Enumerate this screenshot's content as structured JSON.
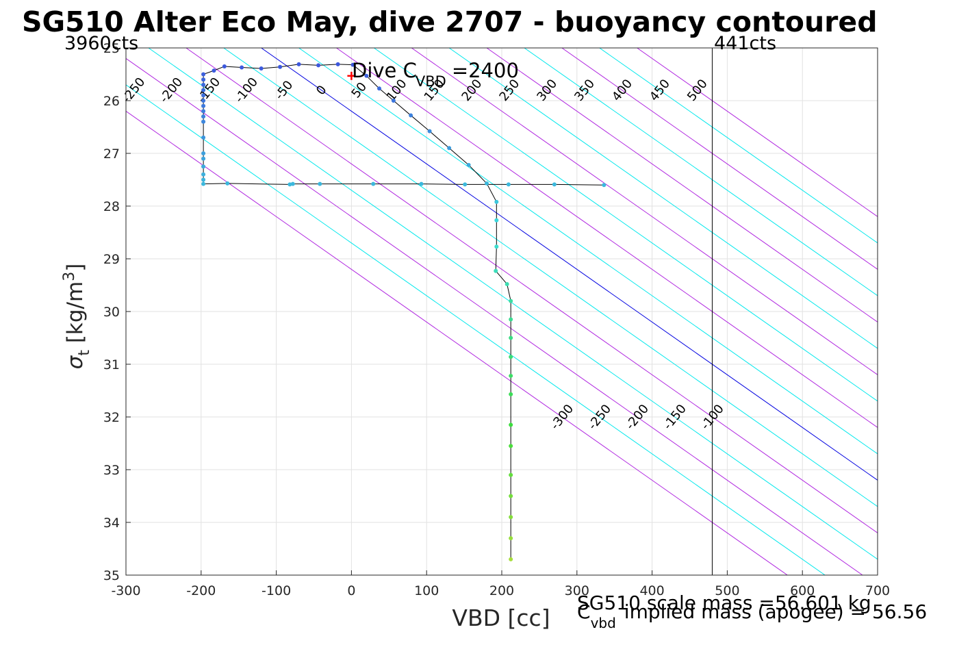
{
  "chart_data": {
    "type": "line",
    "title": "SG510 Alter Eco May, dive 2707 - buoyancy contoured",
    "xlabel": "VBD [cc]",
    "ylabel": "σt [kg/m3]",
    "xlim": [
      -300,
      700
    ],
    "ylim": [
      25,
      35
    ],
    "y_reversed": true,
    "grid": true,
    "x_ticks": [
      -300,
      -200,
      -100,
      0,
      100,
      200,
      300,
      400,
      500,
      600,
      700
    ],
    "y_ticks": [
      25,
      26,
      27,
      28,
      29,
      30,
      31,
      32,
      33,
      34,
      35
    ],
    "x_tick_labels": [
      "-300",
      "-200",
      "-100",
      "0",
      "100",
      "200",
      "300",
      "400",
      "500",
      "600",
      "700"
    ],
    "y_tick_labels": [
      "25",
      "26",
      "27",
      "28",
      "29",
      "30",
      "31",
      "32",
      "33",
      "34",
      "35"
    ],
    "annotations": {
      "counts_left": "3960cts",
      "counts_right": "441cts",
      "dive_c_prefix": "Dive C",
      "dive_c_sub": "VBD",
      "dive_c_value": "=2400",
      "scale_mass": "SG510 scale mass =56.601 kg",
      "implied_c": "C",
      "implied_sub": "vbd",
      "implied_mass": "implied mass (apogee) = 56.56"
    },
    "vertical_line_x": 480,
    "dive_c_marker": {
      "x": 0,
      "y": 25.53
    },
    "contours": {
      "slope_cc_per_kg": 100,
      "anchor_x_at_26_05": -15,
      "levels": [
        -300,
        -250,
        -200,
        -150,
        -100,
        -50,
        0,
        50,
        100,
        150,
        200,
        250,
        300,
        350,
        400,
        450,
        500
      ],
      "labels": [
        "-300",
        "-250",
        "-200",
        "-150",
        "-100",
        "-50",
        "0",
        "50",
        "100",
        "150",
        "200",
        "250",
        "300",
        "350",
        "400",
        "450",
        "500"
      ],
      "colors": {
        "zero": "#0000e0",
        "multiple_100": "#b026e0",
        "default": "#00e8ec"
      }
    },
    "series": [
      {
        "color": "#000000",
        "points": [
          {
            "x": 336,
            "y": 27.6
          },
          {
            "x": 270,
            "y": 27.59
          },
          {
            "x": 209,
            "y": 27.59
          },
          {
            "x": 151,
            "y": 27.59
          },
          {
            "x": 93,
            "y": 27.58
          },
          {
            "x": 29,
            "y": 27.58
          },
          {
            "x": -42,
            "y": 27.58
          },
          {
            "x": -78,
            "y": 27.58
          },
          {
            "x": -82,
            "y": 27.59
          },
          {
            "x": -165,
            "y": 27.57
          },
          {
            "x": -197,
            "y": 27.58
          },
          {
            "x": -197,
            "y": 27.5
          },
          {
            "x": -197,
            "y": 27.4
          },
          {
            "x": -197,
            "y": 27.25
          },
          {
            "x": -197,
            "y": 27.1
          },
          {
            "x": -197,
            "y": 27.0
          },
          {
            "x": -197,
            "y": 26.7
          },
          {
            "x": -197,
            "y": 26.4
          },
          {
            "x": -197,
            "y": 26.3
          },
          {
            "x": -197,
            "y": 26.2
          },
          {
            "x": -197,
            "y": 26.1
          },
          {
            "x": -197,
            "y": 26.0
          },
          {
            "x": -197,
            "y": 25.9
          },
          {
            "x": -197,
            "y": 25.8
          },
          {
            "x": -197,
            "y": 25.7
          },
          {
            "x": -197,
            "y": 25.6
          },
          {
            "x": -197,
            "y": 25.5
          },
          {
            "x": -183,
            "y": 25.43
          },
          {
            "x": -169,
            "y": 25.35
          },
          {
            "x": -146,
            "y": 25.37
          },
          {
            "x": -120,
            "y": 25.39
          },
          {
            "x": -95,
            "y": 25.36
          },
          {
            "x": -70,
            "y": 25.31
          },
          {
            "x": -44,
            "y": 25.33
          },
          {
            "x": -18,
            "y": 25.31
          },
          {
            "x": 2,
            "y": 25.32
          },
          {
            "x": 20,
            "y": 25.53
          },
          {
            "x": 37,
            "y": 25.77
          },
          {
            "x": 56,
            "y": 26.0
          },
          {
            "x": 79,
            "y": 26.28
          },
          {
            "x": 104,
            "y": 26.58
          },
          {
            "x": 130,
            "y": 26.9
          },
          {
            "x": 156,
            "y": 27.22
          },
          {
            "x": 180,
            "y": 27.57
          },
          {
            "x": 193,
            "y": 27.92
          },
          {
            "x": 193,
            "y": 28.27
          },
          {
            "x": 193,
            "y": 28.77
          },
          {
            "x": 192,
            "y": 29.23
          },
          {
            "x": 207,
            "y": 29.48
          },
          {
            "x": 212,
            "y": 29.8
          },
          {
            "x": 212,
            "y": 30.15
          },
          {
            "x": 212,
            "y": 30.5
          },
          {
            "x": 212,
            "y": 30.86
          },
          {
            "x": 212,
            "y": 31.22
          },
          {
            "x": 212,
            "y": 31.57
          },
          {
            "x": 212,
            "y": 32.15
          },
          {
            "x": 212,
            "y": 32.55
          },
          {
            "x": 212,
            "y": 33.1
          },
          {
            "x": 212,
            "y": 33.5
          },
          {
            "x": 212,
            "y": 33.9
          },
          {
            "x": 212,
            "y": 34.3
          },
          {
            "x": 212,
            "y": 34.7
          }
        ]
      }
    ]
  }
}
